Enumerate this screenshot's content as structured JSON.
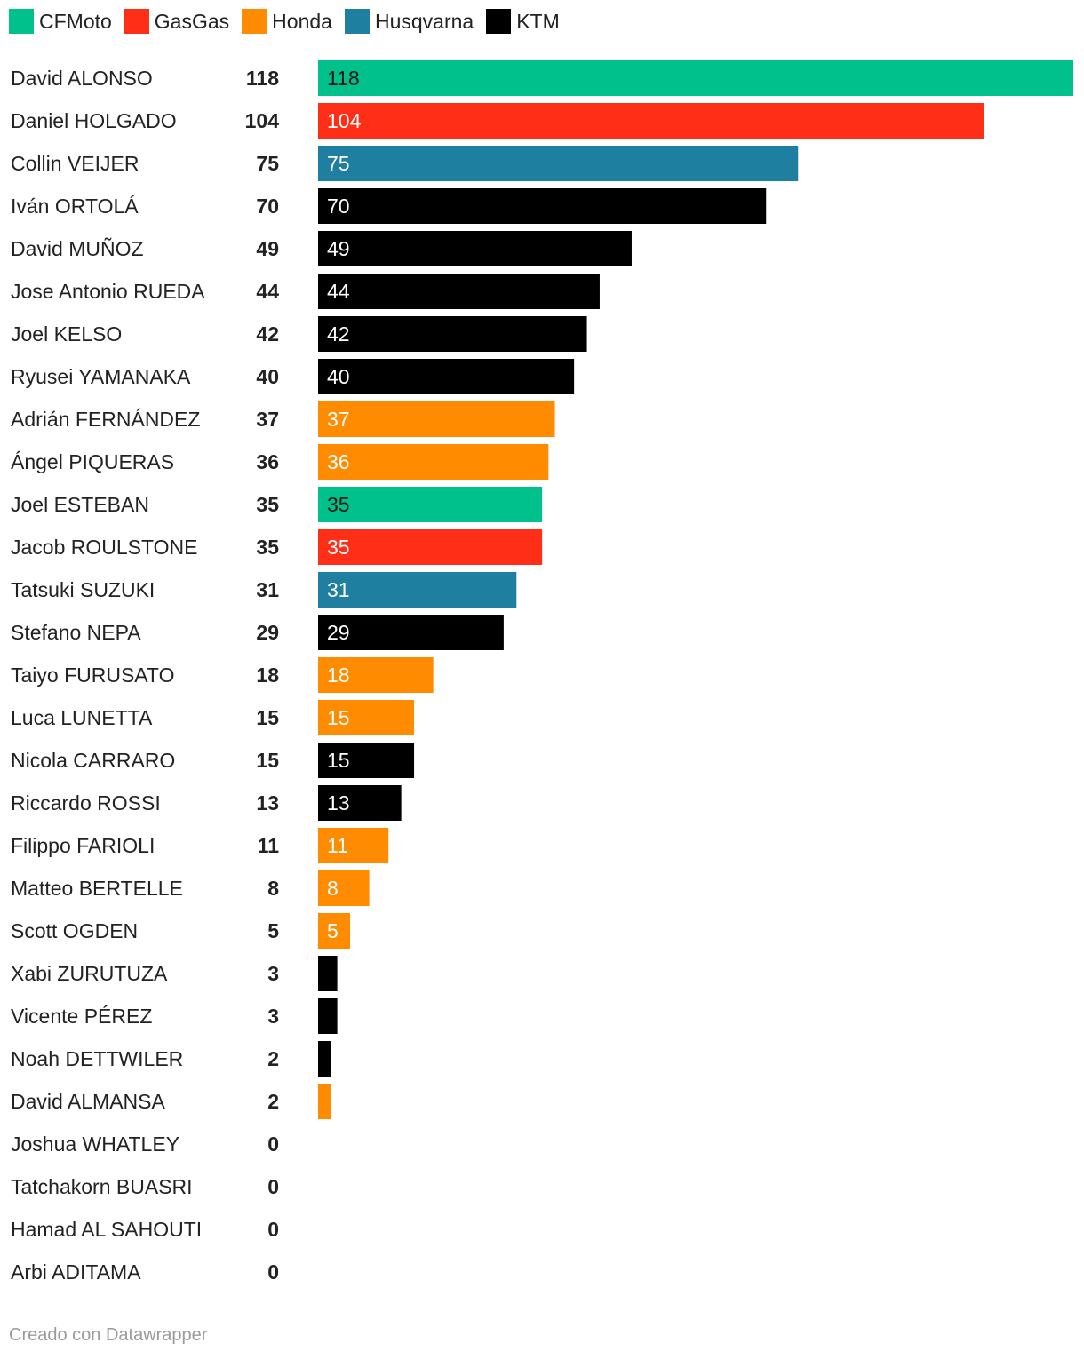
{
  "legend": [
    {
      "name": "CFMoto",
      "color": "#00c08b"
    },
    {
      "name": "GasGas",
      "color": "#ff2e17"
    },
    {
      "name": "Honda",
      "color": "#ff8c00"
    },
    {
      "name": "Husqvarna",
      "color": "#1f7fa0"
    },
    {
      "name": "KTM",
      "color": "#000000"
    }
  ],
  "chart_data": {
    "type": "bar",
    "orientation": "horizontal",
    "categories": [
      "David ALONSO",
      "Daniel HOLGADO",
      "Collin VEIJER",
      "Iván ORTOLÁ",
      "David MUÑOZ",
      "Jose Antonio RUEDA",
      "Joel KELSO",
      "Ryusei YAMANAKA",
      "Adrián FERNÁNDEZ",
      "Ángel PIQUERAS",
      "Joel ESTEBAN",
      "Jacob ROULSTONE",
      "Tatsuki SUZUKI",
      "Stefano NEPA",
      "Taiyo FURUSATO",
      "Luca LUNETTA",
      "Nicola CARRARO",
      "Riccardo ROSSI",
      "Filippo FARIOLI",
      "Matteo BERTELLE",
      "Scott OGDEN",
      "Xabi ZURUTUZA",
      "Vicente PÉREZ",
      "Noah DETTWILER",
      "David ALMANSA",
      "Joshua WHATLEY",
      "Tatchakorn BUASRI",
      "Hamad AL SAHOUTI",
      "Arbi ADITAMA"
    ],
    "values": [
      118,
      104,
      75,
      70,
      49,
      44,
      42,
      40,
      37,
      36,
      35,
      35,
      31,
      29,
      18,
      15,
      15,
      13,
      11,
      8,
      5,
      3,
      3,
      2,
      2,
      0,
      0,
      0,
      0
    ],
    "manufacturers": [
      "CFMoto",
      "GasGas",
      "Husqvarna",
      "KTM",
      "KTM",
      "KTM",
      "KTM",
      "KTM",
      "Honda",
      "Honda",
      "CFMoto",
      "GasGas",
      "Husqvarna",
      "KTM",
      "Honda",
      "Honda",
      "KTM",
      "KTM",
      "Honda",
      "Honda",
      "Honda",
      "KTM",
      "KTM",
      "KTM",
      "Honda",
      "",
      "",
      "",
      ""
    ],
    "xlim": [
      0,
      118
    ],
    "legend_position": "top-left"
  },
  "footer": "Creado con Datawrapper"
}
